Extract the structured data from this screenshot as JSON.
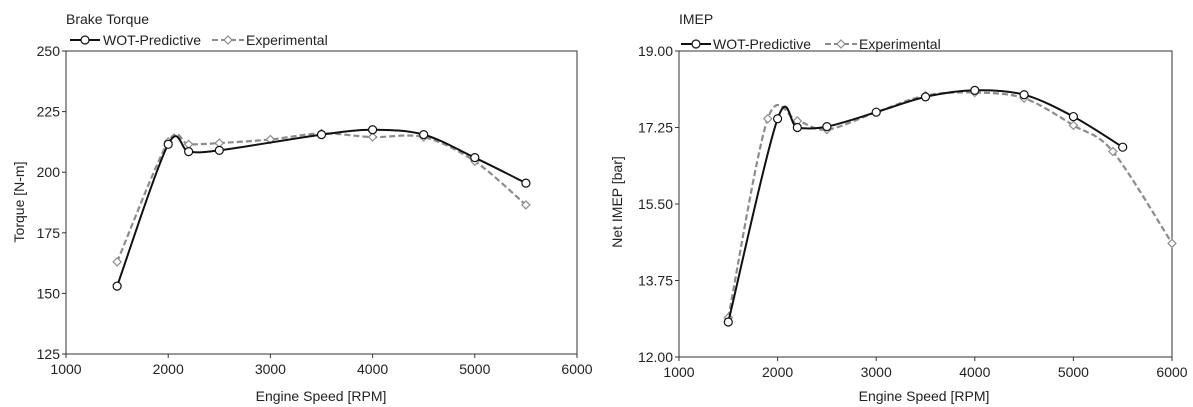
{
  "chart_data": [
    {
      "type": "line",
      "title": "Brake Torque",
      "xlabel": "Engine Speed [RPM]",
      "ylabel": "Torque [N-m]",
      "xlim": [
        1000,
        6000
      ],
      "ylim": [
        125,
        250
      ],
      "xticks": [
        1000,
        2000,
        3000,
        4000,
        5000,
        6000
      ],
      "xtick_labels": [
        "1000",
        "2000",
        "3000",
        "4000",
        "5000",
        "6000"
      ],
      "yticks": [
        125,
        150,
        175,
        200,
        225,
        250
      ],
      "ytick_labels": [
        "125",
        "150",
        "175",
        "200",
        "225",
        "250"
      ],
      "grid": false,
      "legend_position": "top-left",
      "series": [
        {
          "name": "WOT-Predictive",
          "color": "#111111",
          "style": "solid",
          "marker": "circle",
          "x": [
            1500,
            2000,
            2200,
            2500,
            3500,
            4000,
            4500,
            5000,
            5500
          ],
          "y": [
            153,
            211.5,
            208.5,
            209,
            215.5,
            217.5,
            215.5,
            206,
            195.5
          ]
        },
        {
          "name": "Experimental",
          "color": "#8c8c8c",
          "style": "dashed",
          "marker": "diamond",
          "x": [
            1500,
            2000,
            2200,
            2500,
            3000,
            3500,
            4000,
            4500,
            5000,
            5500
          ],
          "y": [
            163,
            212.5,
            211.5,
            212,
            213.5,
            216,
            214.5,
            214.5,
            204.5,
            186.5
          ]
        }
      ]
    },
    {
      "type": "line",
      "title": "IMEP",
      "xlabel": "Engine Speed [RPM]",
      "ylabel": "Net IMEP [bar]",
      "xlim": [
        1000,
        6000
      ],
      "ylim": [
        12.0,
        19.0
      ],
      "xticks": [
        1000,
        2000,
        3000,
        4000,
        5000,
        6000
      ],
      "xtick_labels": [
        "1000",
        "2000",
        "3000",
        "4000",
        "5000",
        "6000"
      ],
      "yticks": [
        12.0,
        13.75,
        15.5,
        17.25,
        19.0
      ],
      "ytick_labels": [
        "12.00",
        "13.75",
        "15.50",
        "17.25",
        "19.00"
      ],
      "grid": false,
      "legend_position": "top-left",
      "series": [
        {
          "name": "WOT-Predictive",
          "color": "#111111",
          "style": "solid",
          "marker": "circle",
          "x": [
            1500,
            2000,
            2200,
            2500,
            3000,
            3500,
            4000,
            4500,
            5000,
            5500
          ],
          "y": [
            12.8,
            17.45,
            17.25,
            17.27,
            17.6,
            17.95,
            18.1,
            18.0,
            17.5,
            16.8
          ]
        },
        {
          "name": "Experimental",
          "color": "#8c8c8c",
          "style": "dashed",
          "marker": "diamond",
          "x": [
            1500,
            1900,
            2200,
            2500,
            3000,
            3500,
            4000,
            4500,
            5000,
            5400,
            6000
          ],
          "y": [
            12.9,
            17.45,
            17.4,
            17.2,
            17.6,
            17.98,
            18.05,
            17.92,
            17.3,
            16.7,
            14.6
          ]
        }
      ]
    }
  ]
}
